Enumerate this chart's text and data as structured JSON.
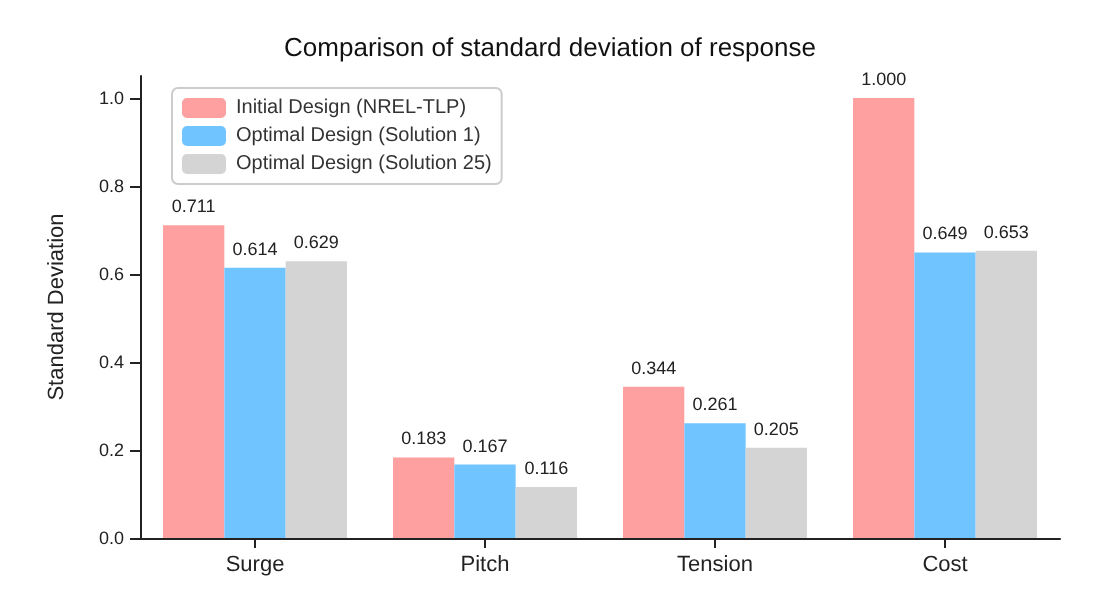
{
  "chart_data": {
    "type": "bar",
    "title": "Comparison of standard deviation of response",
    "ylabel": "Standard Deviation",
    "categories": [
      "Surge",
      "Pitch",
      "Tension",
      "Cost"
    ],
    "series": [
      {
        "name": "Initial Design (NREL-TLP)",
        "color": "#ffa0a0",
        "values": [
          0.711,
          0.183,
          0.344,
          1.0
        ],
        "value_labels": [
          "0.711",
          "0.183",
          "0.344",
          "1.000"
        ]
      },
      {
        "name": "Optimal Design (Solution 1)",
        "color": "#70c4ff",
        "values": [
          0.614,
          0.167,
          0.261,
          0.649
        ],
        "value_labels": [
          "0.614",
          "0.167",
          "0.261",
          "0.649"
        ]
      },
      {
        "name": "Optimal Design (Solution 25)",
        "color": "#d4d4d4",
        "values": [
          0.629,
          0.116,
          0.205,
          0.653
        ],
        "value_labels": [
          "0.629",
          "0.116",
          "0.205",
          "0.653"
        ]
      }
    ],
    "ylim": [
      0,
      1.05
    ],
    "yticks": [
      {
        "value": 0,
        "label": "0.0"
      },
      {
        "value": 0.2,
        "label": "0.2"
      },
      {
        "value": 0.4,
        "label": "0.4"
      },
      {
        "value": 0.6,
        "label": "0.6"
      },
      {
        "value": 0.8,
        "label": "0.8"
      },
      {
        "value": 1,
        "label": "1.0"
      }
    ],
    "grid": false,
    "legend": "top left"
  }
}
